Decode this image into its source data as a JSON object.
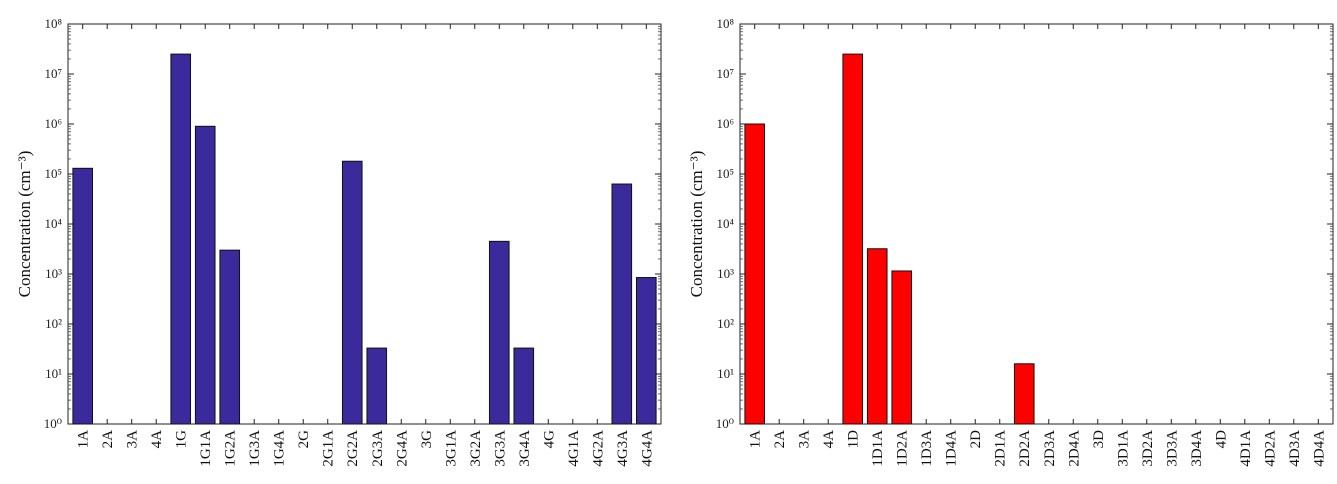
{
  "chart_data": [
    {
      "type": "bar",
      "ylabel": "Concentration (cm⁻³)",
      "yscale": "log",
      "ylim": [
        1,
        100000000
      ],
      "ytick_labels": [
        "10⁰",
        "10¹",
        "10²",
        "10³",
        "10⁴",
        "10⁵",
        "10⁶",
        "10⁷",
        "10⁸"
      ],
      "grid": false,
      "bar_color": "#3a2a9c",
      "categories": [
        "1A",
        "2A",
        "3A",
        "4A",
        "1G",
        "1G1A",
        "1G2A",
        "1G3A",
        "1G4A",
        "2G",
        "2G1A",
        "2G2A",
        "2G3A",
        "2G4A",
        "3G",
        "3G1A",
        "3G2A",
        "3G3A",
        "3G4A",
        "4G",
        "4G1A",
        "4G2A",
        "4G3A",
        "4G4A"
      ],
      "values": [
        130000,
        null,
        null,
        null,
        25000000,
        900000,
        3000,
        null,
        null,
        null,
        null,
        180000,
        33,
        null,
        null,
        null,
        null,
        4500,
        33,
        null,
        null,
        null,
        63000,
        850
      ]
    },
    {
      "type": "bar",
      "ylabel": "Concentration (cm⁻³)",
      "yscale": "log",
      "ylim": [
        1,
        100000000
      ],
      "ytick_labels": [
        "10⁰",
        "10¹",
        "10²",
        "10³",
        "10⁴",
        "10⁵",
        "10⁶",
        "10⁷",
        "10⁸"
      ],
      "grid": false,
      "bar_color": "#ff0000",
      "categories": [
        "1A",
        "2A",
        "3A",
        "4A",
        "1D",
        "1D1A",
        "1D2A",
        "1D3A",
        "1D4A",
        "2D",
        "2D1A",
        "2D2A",
        "2D3A",
        "2D4A",
        "3D",
        "3D1A",
        "3D2A",
        "3D3A",
        "3D4A",
        "4D",
        "4D1A",
        "4D2A",
        "4D3A",
        "4D4A"
      ],
      "values": [
        1000000,
        null,
        null,
        null,
        25000000,
        3200,
        1150,
        null,
        null,
        null,
        null,
        16,
        null,
        null,
        null,
        null,
        null,
        null,
        null,
        null,
        null,
        null,
        null,
        null
      ]
    }
  ]
}
